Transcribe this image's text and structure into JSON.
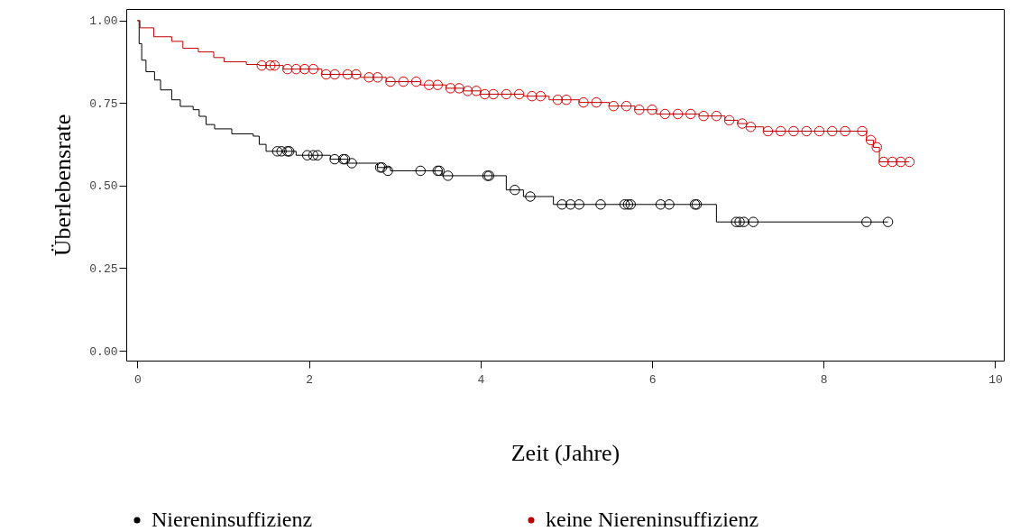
{
  "chart_data": {
    "type": "step",
    "xlabel": "Zeit (Jahre)",
    "ylabel": "Überlebensrate",
    "xlim": [
      -0.13,
      10.1
    ],
    "ylim": [
      -0.03,
      1.035
    ],
    "xticks": [
      0,
      2,
      4,
      6,
      8,
      10
    ],
    "yticks": [
      {
        "value": 0,
        "label": "0.00"
      },
      {
        "value": 0.25,
        "label": "0.25"
      },
      {
        "value": 0.5,
        "label": "0.50"
      },
      {
        "value": 0.75,
        "label": "0.75"
      },
      {
        "value": 1,
        "label": "1.00"
      }
    ],
    "legend": "bottom",
    "series": [
      {
        "name": "Niereninsuffizienz",
        "color": "#000000",
        "x": [
          0,
          0.02,
          0.05,
          0.1,
          0.2,
          0.27,
          0.4,
          0.5,
          0.65,
          0.72,
          0.8,
          0.9,
          1.1,
          1.35,
          1.42,
          1.5,
          1.85,
          2.25,
          2.45,
          2.8,
          2.95,
          3.55,
          4.3,
          4.5,
          4.85,
          6.75,
          8.75
        ],
        "values": [
          1,
          0.93,
          0.88,
          0.845,
          0.82,
          0.79,
          0.76,
          0.74,
          0.73,
          0.71,
          0.685,
          0.672,
          0.657,
          0.65,
          0.625,
          0.604,
          0.592,
          0.58,
          0.568,
          0.555,
          0.545,
          0.53,
          0.487,
          0.467,
          0.443,
          0.39,
          0.39
        ]
      },
      {
        "name": "keine Niereninsuffizienz",
        "color": "#c00000",
        "x": [
          0,
          0.03,
          0.19,
          0.4,
          0.53,
          0.71,
          0.89,
          1.01,
          1.27,
          1.42,
          1.7,
          2.15,
          2.6,
          2.9,
          3.3,
          3.6,
          3.8,
          4.0,
          4.5,
          4.8,
          5.15,
          5.5,
          5.8,
          6.05,
          6.55,
          6.85,
          7.0,
          7.1,
          7.3,
          8.5,
          8.58,
          8.65,
          9.0
        ],
        "values": [
          1,
          0.978,
          0.951,
          0.937,
          0.916,
          0.905,
          0.888,
          0.875,
          0.867,
          0.864,
          0.853,
          0.837,
          0.828,
          0.815,
          0.805,
          0.795,
          0.787,
          0.777,
          0.771,
          0.76,
          0.752,
          0.741,
          0.73,
          0.717,
          0.711,
          0.698,
          0.688,
          0.678,
          0.665,
          0.638,
          0.616,
          0.572,
          0.572
        ]
      },
      {
        "type": "scatter",
        "marker": "circle",
        "color": "#000000",
        "x": [
          1.63,
          1.68,
          1.75,
          1.77,
          1.98,
          2.05,
          2.1,
          2.3,
          2.4,
          2.42,
          2.5,
          2.83,
          2.85,
          2.92,
          3.3,
          3.5,
          3.52,
          3.62,
          4.08,
          4.1,
          4.4,
          4.58,
          4.95,
          5.05,
          5.15,
          5.4,
          5.68,
          5.72,
          5.75,
          6.1,
          6.2,
          6.5,
          6.52,
          6.98,
          7.02,
          7.07,
          7.18,
          8.5,
          8.75
        ],
        "values": [
          0.604,
          0.604,
          0.604,
          0.604,
          0.592,
          0.592,
          0.592,
          0.58,
          0.58,
          0.58,
          0.568,
          0.555,
          0.555,
          0.545,
          0.545,
          0.545,
          0.545,
          0.53,
          0.53,
          0.53,
          0.487,
          0.467,
          0.443,
          0.443,
          0.443,
          0.443,
          0.443,
          0.443,
          0.443,
          0.443,
          0.443,
          0.443,
          0.443,
          0.39,
          0.39,
          0.39,
          0.39,
          0.39,
          0.39
        ]
      },
      {
        "type": "scatter",
        "marker": "circle",
        "color": "#e00000",
        "x": [
          1.45,
          1.55,
          1.6,
          1.75,
          1.85,
          1.95,
          2.05,
          2.2,
          2.3,
          2.45,
          2.55,
          2.7,
          2.8,
          2.95,
          3.1,
          3.25,
          3.4,
          3.5,
          3.65,
          3.75,
          3.85,
          3.95,
          4.05,
          4.15,
          4.3,
          4.45,
          4.6,
          4.7,
          4.9,
          5.0,
          5.2,
          5.35,
          5.55,
          5.7,
          5.85,
          6.0,
          6.15,
          6.3,
          6.45,
          6.6,
          6.75,
          6.9,
          7.05,
          7.15,
          7.35,
          7.5,
          7.65,
          7.8,
          7.95,
          8.1,
          8.25,
          8.45,
          8.55,
          8.62,
          8.7,
          8.8,
          8.9,
          9.0
        ],
        "values": [
          0.864,
          0.864,
          0.864,
          0.853,
          0.853,
          0.853,
          0.853,
          0.837,
          0.837,
          0.837,
          0.837,
          0.828,
          0.828,
          0.815,
          0.815,
          0.815,
          0.805,
          0.805,
          0.795,
          0.795,
          0.787,
          0.787,
          0.777,
          0.777,
          0.777,
          0.777,
          0.771,
          0.771,
          0.76,
          0.76,
          0.752,
          0.752,
          0.741,
          0.741,
          0.73,
          0.73,
          0.717,
          0.717,
          0.717,
          0.711,
          0.711,
          0.698,
          0.688,
          0.678,
          0.665,
          0.665,
          0.665,
          0.665,
          0.665,
          0.665,
          0.665,
          0.665,
          0.638,
          0.616,
          0.572,
          0.572,
          0.572,
          0.572
        ]
      }
    ]
  }
}
